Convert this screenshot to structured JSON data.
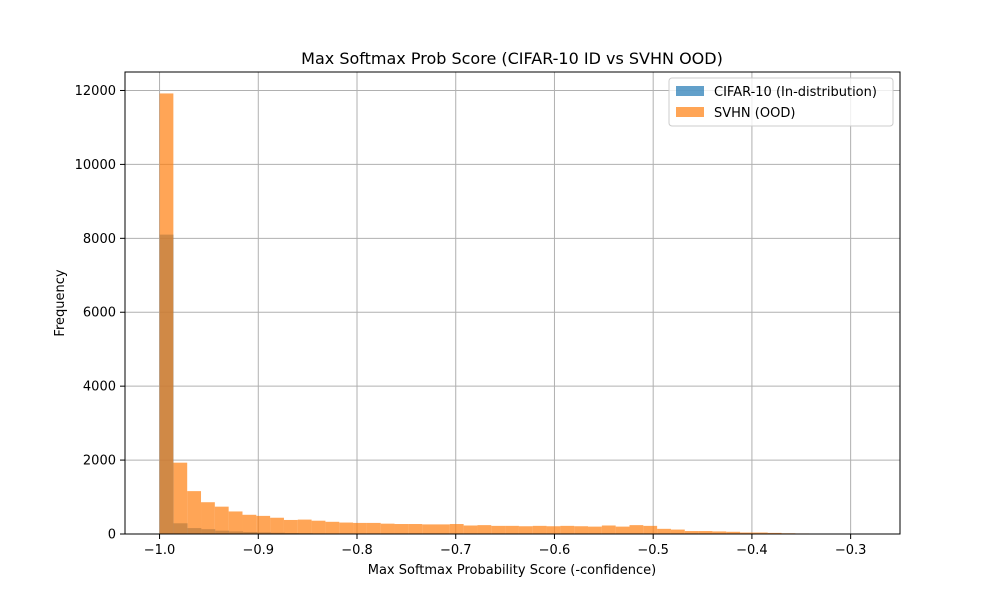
{
  "chart_data": {
    "type": "bar",
    "title": "Max Softmax Prob Score (CIFAR-10 ID vs SVHN OOD)",
    "xlabel": "Max Softmax Probability Score (-confidence)",
    "ylabel": "Frequency",
    "xlim": [
      -1.035,
      -0.25
    ],
    "ylim": [
      0,
      12500
    ],
    "x_ticks": [
      -1.0,
      -0.9,
      -0.8,
      -0.7,
      -0.6,
      -0.5,
      -0.4,
      -0.3
    ],
    "x_tick_labels": [
      "−1.0",
      "−0.9",
      "−0.8",
      "−0.7",
      "−0.6",
      "−0.5",
      "−0.4",
      "−0.3"
    ],
    "y_ticks": [
      0,
      2000,
      4000,
      6000,
      8000,
      10000,
      12000
    ],
    "y_tick_labels": [
      "0",
      "2000",
      "4000",
      "6000",
      "8000",
      "10000",
      "12000"
    ],
    "grid": true,
    "legend_position": "top-right",
    "series": [
      {
        "name": "CIFAR-10 (In-distribution)",
        "color": "#1f77b4",
        "opacity": 0.7,
        "bin_edges": [
          -1.0,
          -0.9859,
          -0.9718,
          -0.9577,
          -0.9436,
          -0.9295,
          -0.9154,
          -0.9013,
          -0.8872,
          -0.8731,
          -0.859,
          -0.8449,
          -0.8308,
          -0.8167,
          -0.8026
        ],
        "counts": [
          8100,
          290,
          160,
          130,
          90,
          70,
          55,
          45,
          35,
          25,
          20,
          15,
          12,
          8
        ]
      },
      {
        "name": "SVHN (OOD)",
        "color": "#ff7f0e",
        "opacity": 0.7,
        "bin_edges": [
          -1.0,
          -0.986,
          -0.972,
          -0.958,
          -0.944,
          -0.93,
          -0.916,
          -0.902,
          -0.888,
          -0.874,
          -0.86,
          -0.846,
          -0.832,
          -0.818,
          -0.804,
          -0.79,
          -0.776,
          -0.762,
          -0.748,
          -0.734,
          -0.72,
          -0.706,
          -0.692,
          -0.678,
          -0.664,
          -0.65,
          -0.636,
          -0.622,
          -0.608,
          -0.594,
          -0.58,
          -0.566,
          -0.552,
          -0.538,
          -0.524,
          -0.51,
          -0.496,
          -0.482,
          -0.468,
          -0.454,
          -0.44,
          -0.426,
          -0.412,
          -0.398,
          -0.384,
          -0.37,
          -0.356,
          -0.342,
          -0.328,
          -0.314,
          -0.3
        ],
        "counts": [
          11920,
          1930,
          1160,
          860,
          740,
          610,
          520,
          490,
          440,
          380,
          390,
          360,
          330,
          310,
          300,
          300,
          280,
          270,
          270,
          260,
          260,
          270,
          230,
          240,
          220,
          220,
          210,
          220,
          210,
          220,
          210,
          200,
          230,
          200,
          240,
          220,
          140,
          120,
          80,
          80,
          70,
          60,
          40,
          40,
          30,
          20,
          15,
          10,
          5,
          3
        ]
      }
    ]
  }
}
